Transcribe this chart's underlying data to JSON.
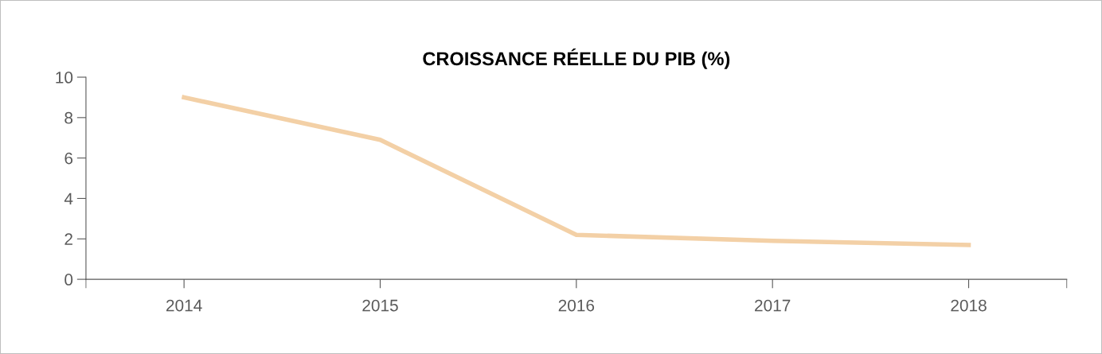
{
  "chart_data": {
    "type": "line",
    "title": "CROISSANCE RÉELLE DU PIB (%)",
    "categories": [
      "2014",
      "2015",
      "2016",
      "2017",
      "2018"
    ],
    "series": [
      {
        "color": "#f3d0a6",
        "values": [
          9.0,
          6.9,
          2.2,
          1.9,
          1.7
        ]
      }
    ],
    "ylim": [
      0,
      10
    ],
    "yticks": [
      0,
      2,
      4,
      6,
      8,
      10
    ],
    "grid": false,
    "legend": false,
    "marker": "none",
    "line_style": "solid"
  }
}
